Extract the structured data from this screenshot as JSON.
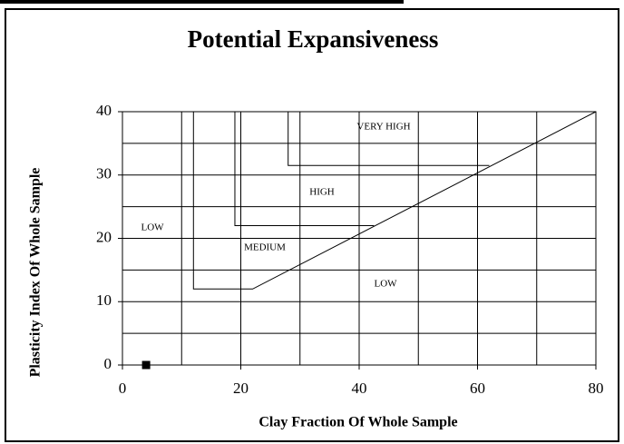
{
  "chart_data": {
    "type": "scatter",
    "title": "Potential Expansiveness",
    "xlabel": "Clay Fraction Of Whole Sample",
    "ylabel": "Plasticity Index Of Whole Sample",
    "xlim": [
      0,
      80
    ],
    "ylim": [
      0,
      40
    ],
    "xticks": [
      0,
      20,
      40,
      60,
      80
    ],
    "yticks": [
      0,
      10,
      20,
      30,
      40
    ],
    "xgrid": [
      10,
      20,
      30,
      40,
      50,
      60,
      70
    ],
    "ygrid": [
      5,
      10,
      15,
      20,
      25,
      30,
      35
    ],
    "grid": true,
    "series": [
      {
        "x": [
          12,
          12,
          22,
          80
        ],
        "values": [
          40,
          12,
          12,
          40
        ],
        "color": "#000000",
        "kind": "line"
      },
      {
        "x": [
          19,
          19,
          42.5
        ],
        "values": [
          40,
          22,
          22
        ],
        "color": "#000000",
        "kind": "line"
      },
      {
        "x": [
          28,
          28,
          62
        ],
        "values": [
          40,
          31.5,
          31.5
        ],
        "color": "#000000",
        "kind": "line"
      },
      {
        "x": [
          4
        ],
        "values": [
          0
        ],
        "color": "#000000",
        "kind": "square"
      }
    ],
    "annotations": [
      "LOW",
      "MEDIUM",
      "HIGH",
      "VERY HIGH",
      "LOW"
    ]
  }
}
